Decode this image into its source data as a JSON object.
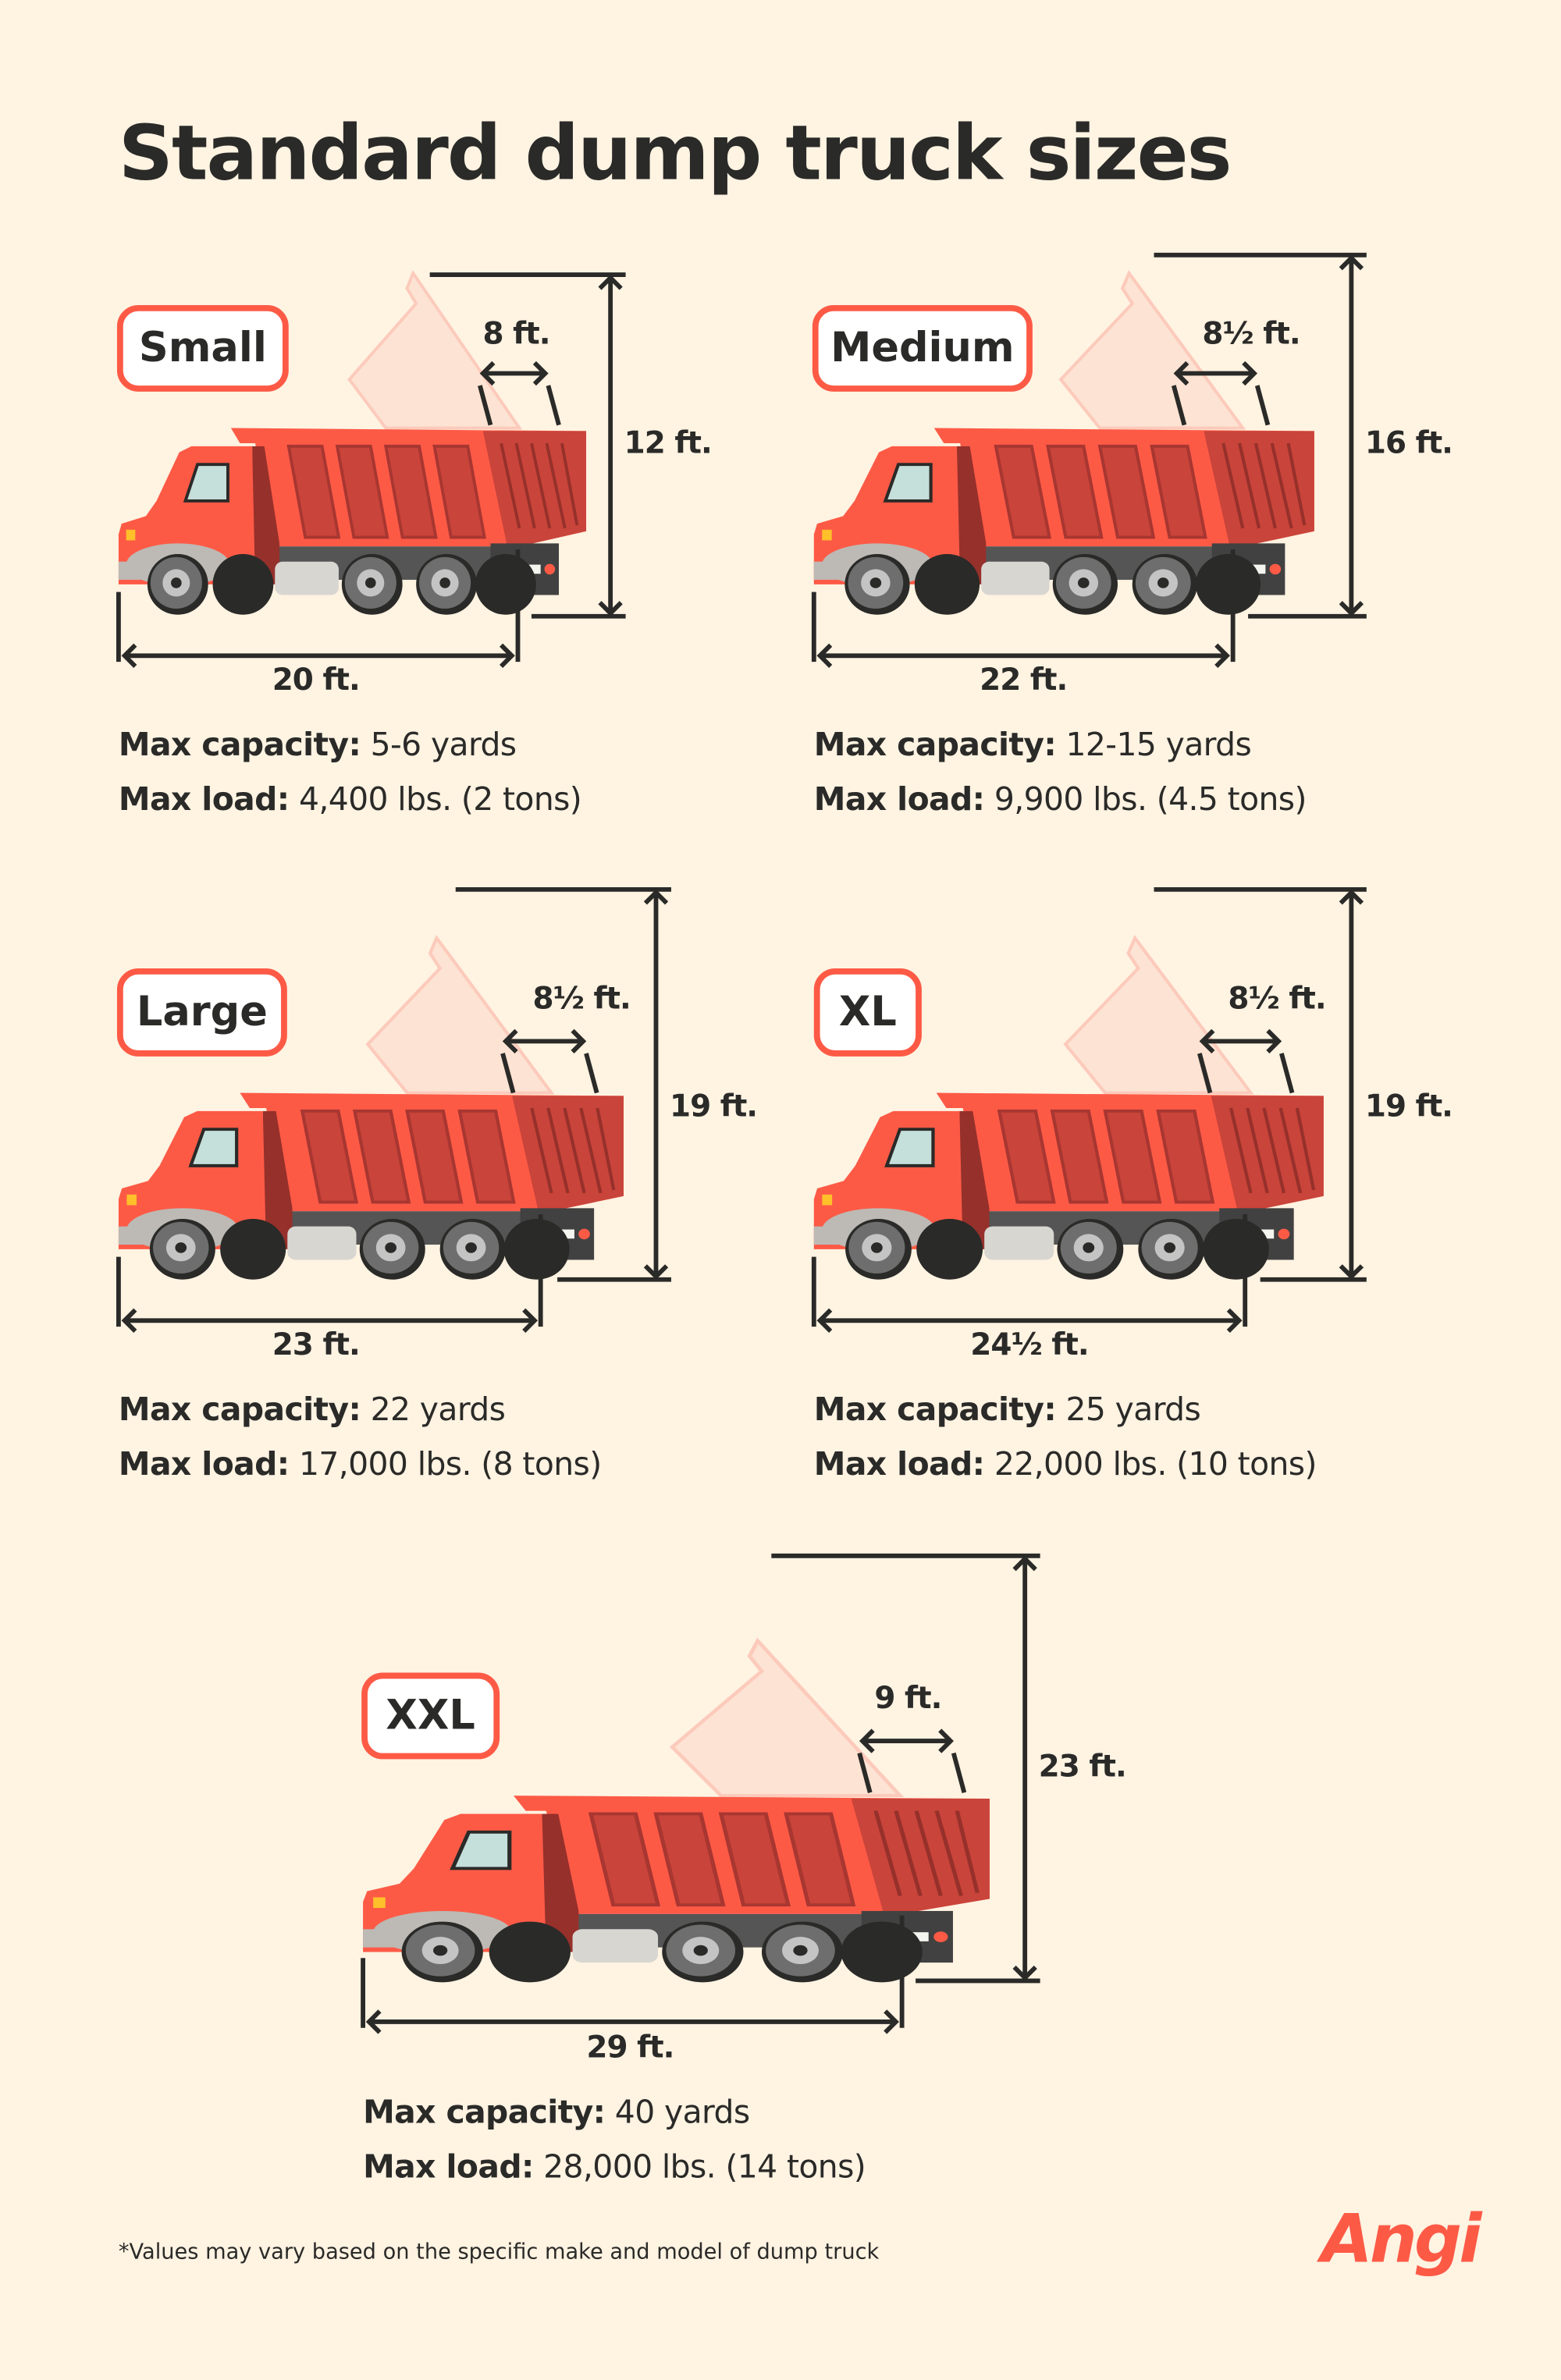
{
  "title": "Standard dump truck sizes",
  "trucks": [
    {
      "label": "Small",
      "height": "12 ft.",
      "length": "20 ft.",
      "bed_width": "8 ft.",
      "capacity_label": "Max capacity:",
      "capacity": " 5-6 yards",
      "load_label": "Max load:",
      "load": " 4,400 lbs. (2 tons)"
    },
    {
      "label": "Medium",
      "height": "16 ft.",
      "length": "22 ft.",
      "bed_width": "8½ ft.",
      "capacity_label": "Max capacity:",
      "capacity": " 12-15 yards",
      "load_label": "Max load:",
      "load": " 9,900 lbs. (4.5 tons)"
    },
    {
      "label": "Large",
      "height": "19 ft.",
      "length": "23 ft.",
      "bed_width": "8½ ft.",
      "capacity_label": "Max capacity:",
      "capacity": " 22 yards",
      "load_label": "Max load:",
      "load": " 17,000 lbs. (8 tons)"
    },
    {
      "label": "XL",
      "height": "19 ft.",
      "length": "24½ ft.",
      "bed_width": "8½ ft.",
      "capacity_label": "Max capacity:",
      "capacity": " 25 yards",
      "load_label": "Max load:",
      "load": " 22,000 lbs. (10 tons)"
    },
    {
      "label": "XXL",
      "height": "23 ft.",
      "length": "29 ft.",
      "bed_width": "9 ft.",
      "capacity_label": "Max capacity:",
      "capacity": " 40 yards",
      "load_label": "Max load:",
      "load": " 28,000 lbs. (14 tons)"
    }
  ],
  "footnote": "*Values may vary based on the specific make and model of dump truck",
  "brand": "Angi",
  "colors": {
    "background": "#fff3e2",
    "accent": "#fd5a46",
    "text": "#2a2a28",
    "bed_dark": "#c9443a",
    "ghost_bed": "#fde3d3"
  }
}
